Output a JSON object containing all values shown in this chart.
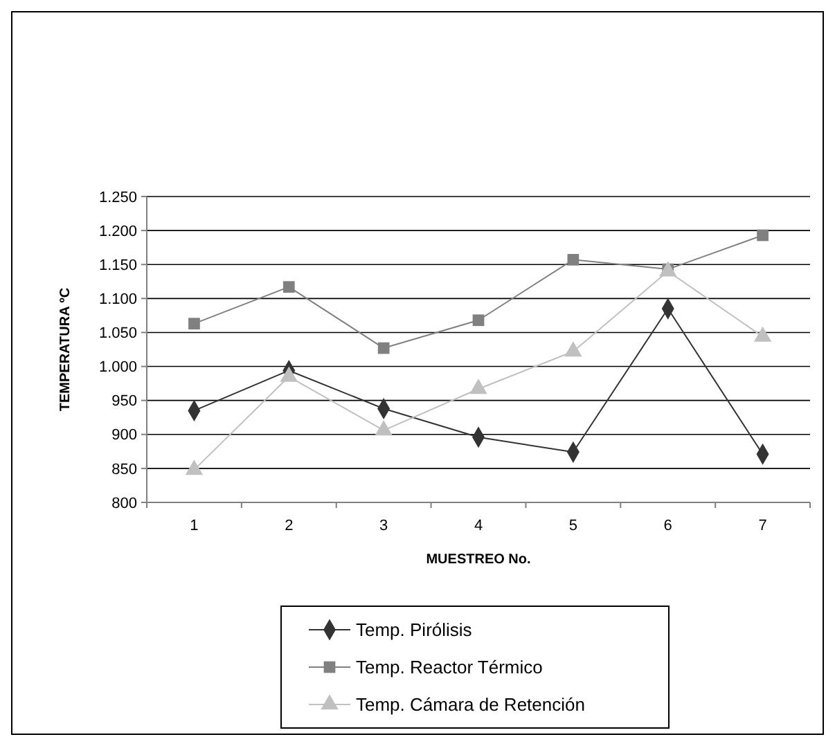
{
  "chart_data": {
    "type": "line",
    "xlabel": "MUESTREO No.",
    "ylabel": "TEMPERATURA ºC",
    "categories": [
      "1",
      "2",
      "3",
      "4",
      "5",
      "6",
      "7"
    ],
    "series": [
      {
        "name": "Temp. Pirólisis",
        "color": "#333333",
        "marker": "diamond",
        "values": [
          935,
          994,
          938,
          896,
          874,
          1085,
          871
        ]
      },
      {
        "name": "Temp. Reactor Térmico",
        "color": "#808080",
        "marker": "square",
        "values": [
          1063,
          1117,
          1027,
          1068,
          1157,
          1143,
          1193
        ]
      },
      {
        "name": "Temp. Cámara de Retención",
        "color": "#c0c0c0",
        "marker": "triangle",
        "values": [
          848,
          985,
          906,
          967,
          1022,
          1140,
          1044
        ]
      }
    ],
    "ylim": [
      800,
      1250
    ],
    "yticks": [
      {
        "value": 800,
        "label": "800"
      },
      {
        "value": 850,
        "label": "850"
      },
      {
        "value": 900,
        "label": "900"
      },
      {
        "value": 950,
        "label": "950"
      },
      {
        "value": 1000,
        "label": "1.000"
      },
      {
        "value": 1050,
        "label": "1.050"
      },
      {
        "value": 1100,
        "label": "1.100"
      },
      {
        "value": 1150,
        "label": "1.150"
      },
      {
        "value": 1200,
        "label": "1.200"
      },
      {
        "value": 1250,
        "label": "1.250"
      }
    ],
    "grid": "y",
    "legend": "bottom",
    "line_style": "solid"
  }
}
